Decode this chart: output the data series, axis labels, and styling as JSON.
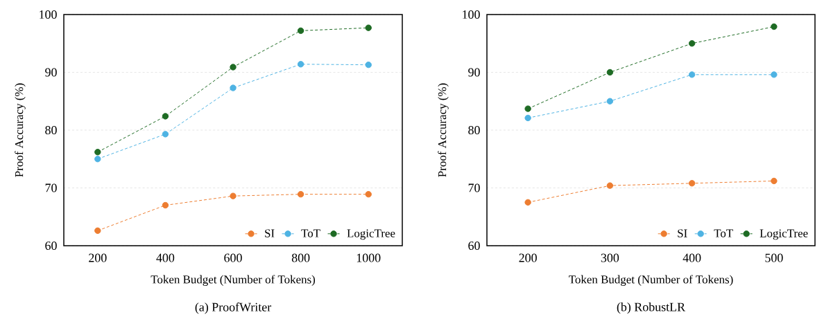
{
  "chart_data": [
    {
      "type": "line",
      "title": "(a) ProofWriter",
      "xlabel": "Token Budget (Number of Tokens)",
      "ylabel": "Proof Accuracy (%)",
      "categories": [
        "200",
        "400",
        "600",
        "800",
        "1000"
      ],
      "series": [
        {
          "name": "SI",
          "color": "#ed7d31",
          "values": [
            62.6,
            67.0,
            68.6,
            68.9,
            68.9
          ]
        },
        {
          "name": "ToT",
          "color": "#4eb3e3",
          "values": [
            75.0,
            79.3,
            87.3,
            91.4,
            91.3
          ]
        },
        {
          "name": "LogicTree",
          "color": "#1e6b24",
          "values": [
            76.2,
            82.4,
            90.9,
            97.2,
            97.7
          ]
        }
      ],
      "ylim": [
        60,
        100
      ],
      "yticks": [
        60,
        70,
        80,
        90,
        100
      ],
      "grid": "y",
      "legend": "bottom right",
      "marker": "circle",
      "line_style": "dashed"
    },
    {
      "type": "line",
      "title": "(b) RobustLR",
      "xlabel": "Token Budget (Number of Tokens)",
      "ylabel": "Proof Accuracy (%)",
      "categories": [
        "200",
        "300",
        "400",
        "500"
      ],
      "series": [
        {
          "name": "SI",
          "color": "#ed7d31",
          "values": [
            67.5,
            70.4,
            70.8,
            71.2
          ]
        },
        {
          "name": "ToT",
          "color": "#4eb3e3",
          "values": [
            82.1,
            85.0,
            89.6,
            89.6
          ]
        },
        {
          "name": "LogicTree",
          "color": "#1e6b24",
          "values": [
            83.7,
            90.0,
            95.0,
            97.9
          ]
        }
      ],
      "ylim": [
        60,
        100
      ],
      "yticks": [
        60,
        70,
        80,
        90,
        100
      ],
      "grid": "y",
      "legend": "bottom right",
      "marker": "circle",
      "line_style": "dashed"
    }
  ]
}
